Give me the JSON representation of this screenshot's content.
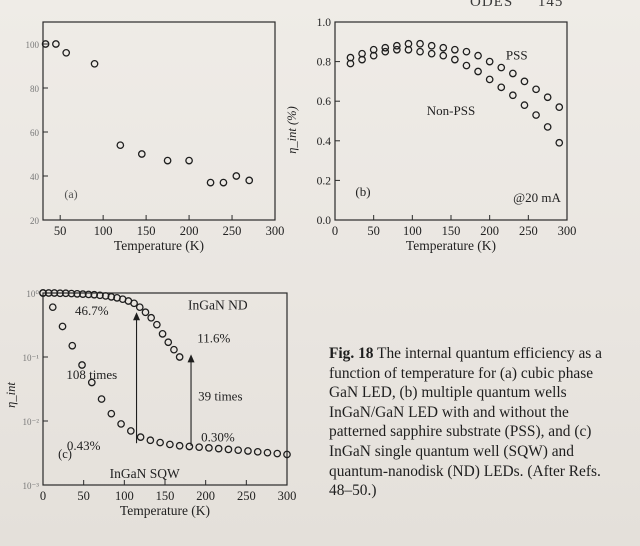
{
  "page": {
    "header_fragment": "ODES",
    "page_number": "145"
  },
  "caption": {
    "label": "Fig. 18",
    "text": "The internal quantum efficiency as a function of temperature for (a) cubic phase GaN LED, (b) multiple quantum wells InGaN/GaN LED with and without the patterned sapphire substrate (PSS), and (c) InGaN single quantum well (SQW) and quantum-nanodisk (ND) LEDs. (After Refs. 48–50.)"
  },
  "chart_data": [
    {
      "panel": "(a)",
      "type": "scatter",
      "xlabel": "Temperature (K)",
      "ylabel": "",
      "xlim": [
        30,
        300
      ],
      "ylim": [
        20,
        110
      ],
      "xticks": [
        50,
        100,
        150,
        200,
        250,
        300
      ],
      "yticks": [
        20,
        40,
        60,
        80,
        100
      ],
      "ytick_labels": [
        "20",
        "40",
        "60",
        "80",
        "100"
      ],
      "series": [
        {
          "marker": "open-circle",
          "x": [
            33,
            45,
            57,
            90,
            120,
            145,
            175,
            200,
            225,
            240,
            255,
            270
          ],
          "y": [
            100,
            100,
            96,
            91,
            54,
            50,
            47,
            47,
            37,
            37,
            40,
            38
          ]
        }
      ],
      "grid": false
    },
    {
      "panel": "(b)",
      "type": "scatter",
      "xlabel": "Temperature (K)",
      "ylabel": "η_int (%)",
      "xlim": [
        0,
        300
      ],
      "ylim": [
        0.0,
        1.0
      ],
      "xticks": [
        0,
        50,
        100,
        150,
        200,
        250,
        300
      ],
      "yticks": [
        0.0,
        0.2,
        0.4,
        0.6,
        0.8,
        1.0
      ],
      "ytick_labels": [
        "0.0",
        "0.2",
        "0.4",
        "0.6",
        "0.8",
        "1.0"
      ],
      "annotation": "@20 mA",
      "series": [
        {
          "name": "PSS",
          "marker": "open-circle",
          "x": [
            20,
            35,
            50,
            65,
            80,
            95,
            110,
            125,
            140,
            155,
            170,
            185,
            200,
            215,
            230,
            245,
            260,
            275,
            290
          ],
          "y": [
            0.82,
            0.84,
            0.86,
            0.87,
            0.88,
            0.89,
            0.89,
            0.88,
            0.87,
            0.86,
            0.85,
            0.83,
            0.8,
            0.77,
            0.74,
            0.7,
            0.66,
            0.62,
            0.57
          ]
        },
        {
          "name": "Non-PSS",
          "marker": "open-circle",
          "x": [
            20,
            35,
            50,
            65,
            80,
            95,
            110,
            125,
            140,
            155,
            170,
            185,
            200,
            215,
            230,
            245,
            260,
            275,
            290
          ],
          "y": [
            0.79,
            0.81,
            0.83,
            0.85,
            0.86,
            0.86,
            0.85,
            0.84,
            0.83,
            0.81,
            0.78,
            0.75,
            0.71,
            0.67,
            0.63,
            0.58,
            0.53,
            0.47,
            0.39
          ]
        }
      ],
      "grid": false
    },
    {
      "panel": "(c)",
      "type": "scatter",
      "xlabel": "Temperature (K)",
      "ylabel": "η_int",
      "xlim": [
        0,
        300
      ],
      "ylim_log10": [
        -3,
        0
      ],
      "log_y": true,
      "xticks": [
        0,
        50,
        100,
        150,
        200,
        250,
        300
      ],
      "yticks_log10": [
        -3,
        -2,
        -1,
        0
      ],
      "ytick_labels": [
        "10⁻³",
        "10⁻²",
        "10⁻¹",
        "10⁰"
      ],
      "annotations": [
        "46.7%",
        "11.6%",
        "108 times",
        "39 times",
        "0.43%",
        "0.30%"
      ],
      "series": [
        {
          "name": "InGaN ND",
          "marker": "open-circle",
          "x": [
            0,
            7,
            14,
            21,
            28,
            35,
            42,
            49,
            56,
            63,
            70,
            77,
            84,
            91,
            98,
            105,
            112,
            119,
            126,
            133,
            140,
            147,
            154,
            161,
            168
          ],
          "y": [
            1.0,
            1.0,
            1.0,
            0.99,
            0.99,
            0.98,
            0.97,
            0.96,
            0.95,
            0.94,
            0.92,
            0.9,
            0.87,
            0.84,
            0.8,
            0.75,
            0.69,
            0.6,
            0.5,
            0.41,
            0.32,
            0.23,
            0.17,
            0.13,
            0.1
          ]
        },
        {
          "name": "InGaN SQW",
          "marker": "open-circle",
          "x": [
            0,
            12,
            24,
            36,
            48,
            60,
            72,
            84,
            96,
            108,
            120,
            132,
            144,
            156,
            168,
            180,
            192,
            204,
            216,
            228,
            240,
            252,
            264,
            276,
            288,
            300
          ],
          "y": [
            1.0,
            0.6,
            0.3,
            0.15,
            0.075,
            0.04,
            0.022,
            0.013,
            0.009,
            0.007,
            0.0056,
            0.005,
            0.0046,
            0.0043,
            0.0041,
            0.004,
            0.0039,
            0.0038,
            0.0037,
            0.0036,
            0.0035,
            0.0034,
            0.0033,
            0.0032,
            0.0031,
            0.003
          ]
        }
      ],
      "grid": false
    }
  ]
}
